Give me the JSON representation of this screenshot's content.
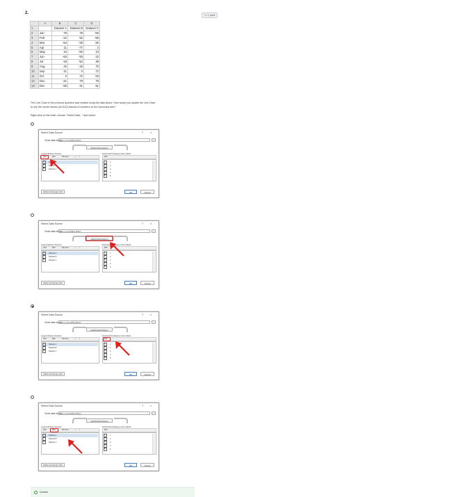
{
  "question": {
    "number": "2.",
    "points": "1 / 1 point",
    "prompt_line1": "The Line Chart in the previous question was created using the data above. How would you update the Line Chart",
    "prompt_line2": "to use the month names (A2:A13) instead of numbers on the horizontal axis?",
    "instruction": "Right-click on the chart, choose \"Select Data...\" and select:"
  },
  "sheet": {
    "columns": [
      "A",
      "B",
      "C",
      "D"
    ],
    "headers": [
      "",
      "Dataset A",
      "Dataset B",
      "Dataset C"
    ],
    "rows": [
      [
        "Jan",
        "79",
        "78",
        "-55"
      ],
      [
        "Feb",
        "-22",
        "82",
        "-58"
      ],
      [
        "Mar",
        "-54",
        "-25",
        "-30"
      ],
      [
        "Apr",
        "11",
        "-77",
        "2"
      ],
      [
        "May",
        "10",
        "-50",
        "13"
      ],
      [
        "Jun",
        "-63",
        "-93",
        "22"
      ],
      [
        "Jul",
        "-18",
        "-52",
        "48"
      ],
      [
        "Aug",
        "22",
        "-18",
        "70"
      ],
      [
        "Sep",
        "21",
        "0",
        "72"
      ],
      [
        "Oct",
        "0",
        "72",
        "63"
      ],
      [
        "Nov",
        "-41",
        "78",
        "78"
      ],
      [
        "Dec",
        "-58",
        "31",
        "91"
      ]
    ],
    "row_numbers": [
      "1",
      "2",
      "3",
      "4",
      "5",
      "6",
      "7",
      "8",
      "9",
      "10",
      "11",
      "12",
      "13"
    ]
  },
  "dialog": {
    "title": "Select Data Source",
    "help": "?",
    "close": "×",
    "range_label": "Chart data range:",
    "range_value": "=Line Graph!$B$1:$D$13",
    "switch_label": "Switch Row/Column",
    "legend_label": "Legend Entries (Series)",
    "axis_label": "Horizontal (Category) Axis Labels",
    "add": "Add",
    "edit": "Edit",
    "remove": "Remove",
    "up": "▲",
    "down": "▼",
    "series": [
      "Dataset A",
      "Dataset B",
      "Dataset C"
    ],
    "axis_items": [
      "1",
      "2",
      "3",
      "4",
      "5"
    ],
    "hidden_cells": "Hidden and Empty Cells",
    "ok": "OK",
    "cancel": "Cancel"
  },
  "options": [
    {
      "selected": false,
      "highlight": "add"
    },
    {
      "selected": false,
      "highlight": "switch"
    },
    {
      "selected": true,
      "highlight": "axis-edit"
    },
    {
      "selected": false,
      "highlight": "series-edit"
    }
  ],
  "feedback": {
    "label": "Correct"
  },
  "colors": {
    "highlight": "#e02020",
    "correct_bg": "#eef7ef",
    "selection": "#d5e3f2"
  }
}
